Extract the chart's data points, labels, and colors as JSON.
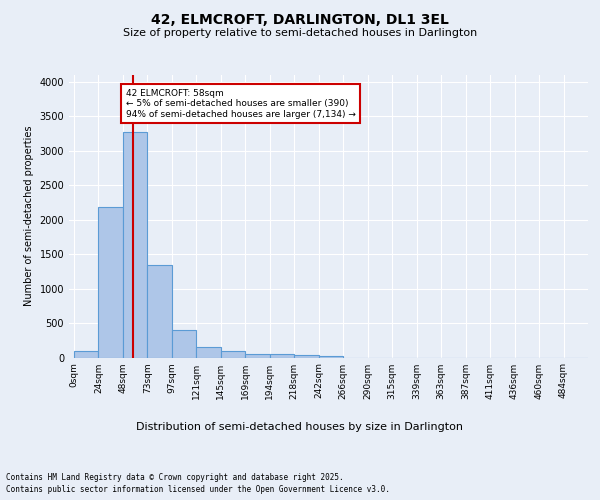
{
  "title": "42, ELMCROFT, DARLINGTON, DL1 3EL",
  "subtitle": "Size of property relative to semi-detached houses in Darlington",
  "xlabel": "Distribution of semi-detached houses by size in Darlington",
  "ylabel": "Number of semi-detached properties",
  "bar_labels": [
    "0sqm",
    "24sqm",
    "48sqm",
    "73sqm",
    "97sqm",
    "121sqm",
    "145sqm",
    "169sqm",
    "194sqm",
    "218sqm",
    "242sqm",
    "266sqm",
    "290sqm",
    "315sqm",
    "339sqm",
    "363sqm",
    "387sqm",
    "411sqm",
    "436sqm",
    "460sqm",
    "484sqm"
  ],
  "bar_values": [
    100,
    2180,
    3280,
    1340,
    400,
    155,
    90,
    50,
    45,
    30,
    20,
    0,
    0,
    0,
    0,
    0,
    0,
    0,
    0,
    0,
    0
  ],
  "bar_color": "#aec6e8",
  "bar_edge_color": "#5b9bd5",
  "vline_color": "#cc0000",
  "vline_x": 58,
  "annotation_text": "42 ELMCROFT: 58sqm\n← 5% of semi-detached houses are smaller (390)\n94% of semi-detached houses are larger (7,134) →",
  "annotation_box_color": "#ffffff",
  "annotation_box_edge_color": "#cc0000",
  "ylim": [
    0,
    4100
  ],
  "yticks": [
    0,
    500,
    1000,
    1500,
    2000,
    2500,
    3000,
    3500,
    4000
  ],
  "background_color": "#e8eef7",
  "grid_color": "#ffffff",
  "footer_line1": "Contains HM Land Registry data © Crown copyright and database right 2025.",
  "footer_line2": "Contains public sector information licensed under the Open Government Licence v3.0.",
  "bin_width": 24
}
